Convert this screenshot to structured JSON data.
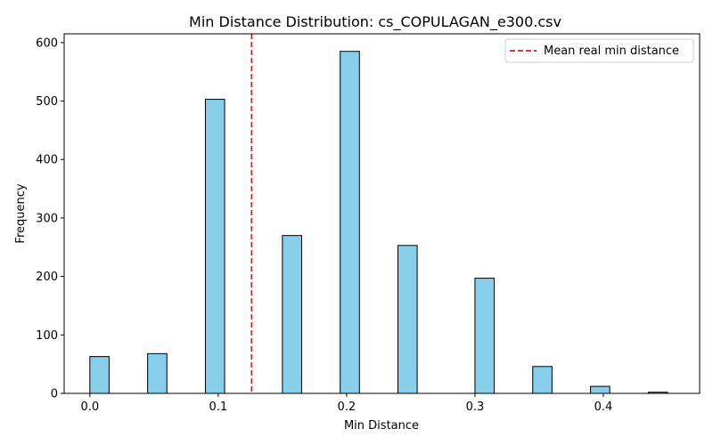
{
  "chart_data": {
    "type": "bar",
    "title": "Min Distance Distribution: cs_COPULAGAN_e300.csv",
    "xlabel": "Min Distance",
    "ylabel": "Frequency",
    "xlim": [
      -0.02,
      0.475
    ],
    "ylim": [
      0,
      615
    ],
    "xticks": [
      0.0,
      0.1,
      0.2,
      0.3,
      0.4
    ],
    "xtick_labels": [
      "0.0",
      "0.1",
      "0.2",
      "0.3",
      "0.4"
    ],
    "yticks": [
      0,
      100,
      200,
      300,
      400,
      500,
      600
    ],
    "ytick_labels": [
      "0",
      "100",
      "200",
      "300",
      "400",
      "500",
      "600"
    ],
    "bars": [
      {
        "x0": 0.0,
        "x1": 0.015,
        "count": 63
      },
      {
        "x0": 0.045,
        "x1": 0.06,
        "count": 68
      },
      {
        "x0": 0.09,
        "x1": 0.105,
        "count": 503
      },
      {
        "x0": 0.15,
        "x1": 0.165,
        "count": 270
      },
      {
        "x0": 0.195,
        "x1": 0.21,
        "count": 585
      },
      {
        "x0": 0.24,
        "x1": 0.255,
        "count": 253
      },
      {
        "x0": 0.3,
        "x1": 0.315,
        "count": 197
      },
      {
        "x0": 0.345,
        "x1": 0.36,
        "count": 46
      },
      {
        "x0": 0.39,
        "x1": 0.405,
        "count": 12
      },
      {
        "x0": 0.435,
        "x1": 0.45,
        "count": 2
      }
    ],
    "reference_line": {
      "x": 0.126,
      "label": "Mean real min distance",
      "color": "#e41a1c",
      "style": "dashed"
    },
    "bar_color": "#87ceeb",
    "bar_edge_color": "#000000",
    "legend_position": "upper right",
    "grid": false
  }
}
